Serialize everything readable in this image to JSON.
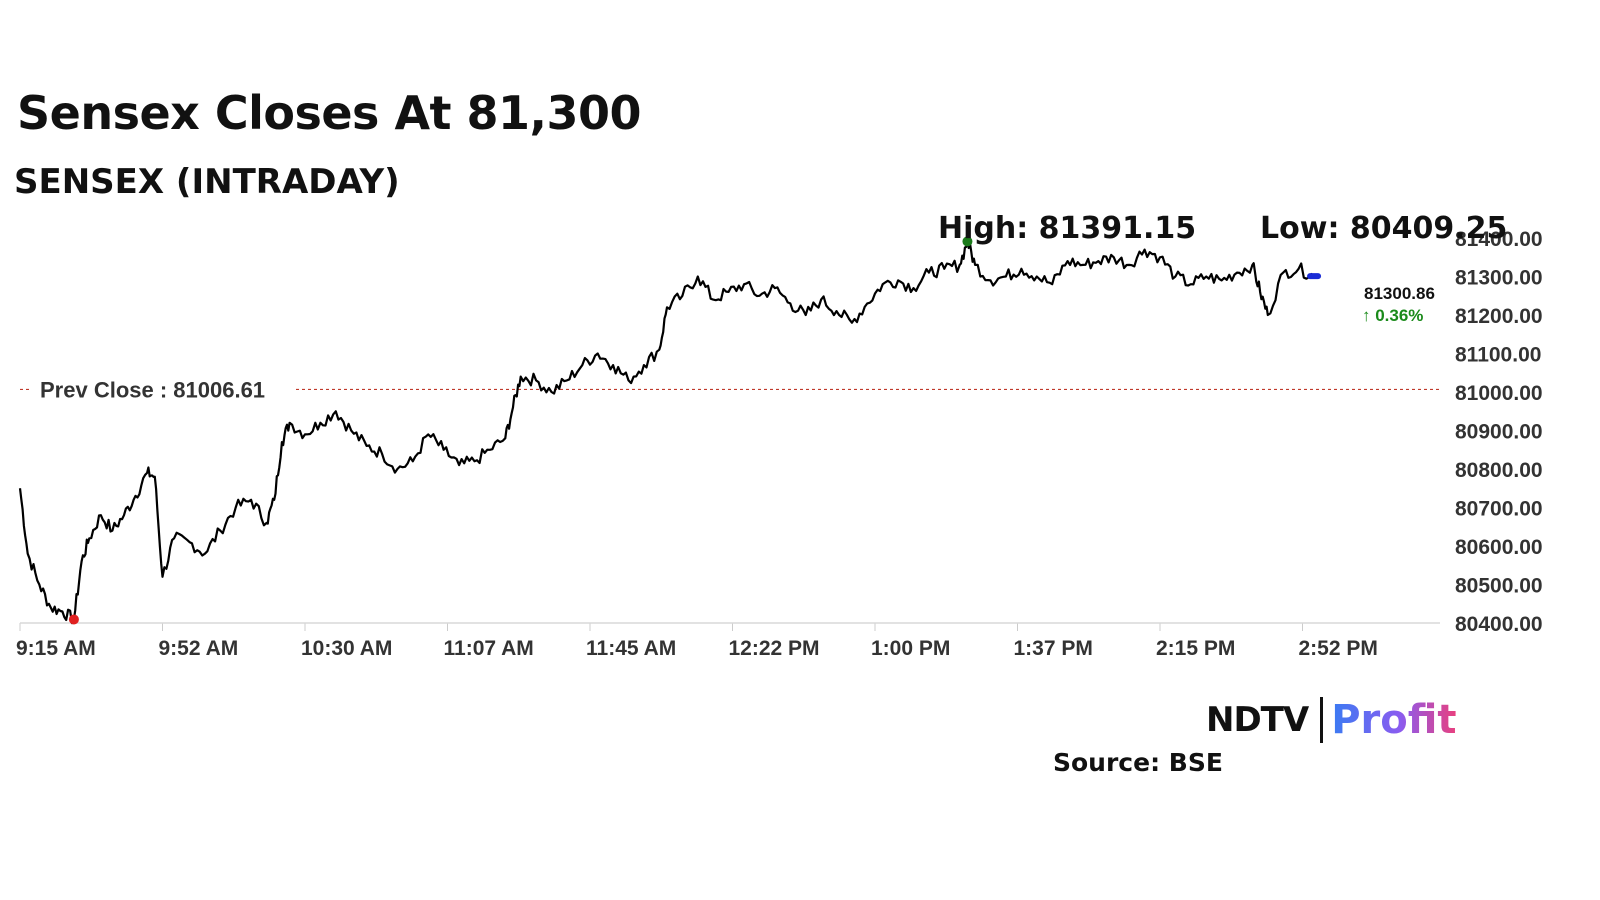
{
  "headline": "Sensex Closes At 81,300",
  "subheadline": "SENSEX (INTRADAY)",
  "high_label": "High: 81391.15",
  "low_label": "Low: 80409.25",
  "prev_close_label": "Prev Close : 81006.61",
  "last_value": "81300.86",
  "change_label": "↑ 0.36%",
  "source_label": "Source: BSE",
  "logo": {
    "brand": "NDTV",
    "product": "Profit"
  },
  "colors": {
    "line": "#000000",
    "prev_close": "#c0392b",
    "high_marker": "#1a7a1a",
    "low_marker": "#e02020",
    "last_marker": "#1a2bd6",
    "change": "#1a8a1a"
  },
  "chart_data": {
    "type": "line",
    "x_ticks": [
      "9:15 AM",
      "9:52 AM",
      "10:30 AM",
      "11:07 AM",
      "11:45 AM",
      "12:22 PM",
      "1:00 PM",
      "1:37 PM",
      "2:15 PM",
      "2:52 PM"
    ],
    "y_ticks": [
      "80400.00",
      "80500.00",
      "80600.00",
      "80700.00",
      "80800.00",
      "80900.00",
      "81000.00",
      "81100.00",
      "81200.00",
      "81300.00",
      "81400.00"
    ],
    "ylim": [
      80400,
      81400
    ],
    "prev_close": 81006.61,
    "high": 81391.15,
    "low": 80409.25,
    "series": [
      {
        "values": [
          [
            0,
            80750
          ],
          [
            2,
            80580
          ],
          [
            5,
            80500
          ],
          [
            8,
            80440
          ],
          [
            11,
            80430
          ],
          [
            14,
            80409.25
          ],
          [
            16,
            80560
          ],
          [
            18,
            80620
          ],
          [
            21,
            80680
          ],
          [
            24,
            80640
          ],
          [
            27,
            80680
          ],
          [
            30,
            80730
          ],
          [
            33,
            80790
          ],
          [
            35,
            80780
          ],
          [
            37,
            80520
          ],
          [
            40,
            80620
          ],
          [
            44,
            80610
          ],
          [
            48,
            80580
          ],
          [
            52,
            80640
          ],
          [
            56,
            80700
          ],
          [
            60,
            80720
          ],
          [
            64,
            80660
          ],
          [
            66,
            80720
          ],
          [
            68,
            80870
          ],
          [
            70,
            80920
          ],
          [
            74,
            80890
          ],
          [
            78,
            80920
          ],
          [
            82,
            80950
          ],
          [
            86,
            80900
          ],
          [
            90,
            80860
          ],
          [
            94,
            80840
          ],
          [
            98,
            80800
          ],
          [
            102,
            80820
          ],
          [
            106,
            80890
          ],
          [
            110,
            80850
          ],
          [
            114,
            80810
          ],
          [
            118,
            80820
          ],
          [
            122,
            80850
          ],
          [
            126,
            80880
          ],
          [
            128,
            80960
          ],
          [
            130,
            81040
          ],
          [
            134,
            81030
          ],
          [
            138,
            81000
          ],
          [
            142,
            81030
          ],
          [
            146,
            81070
          ],
          [
            150,
            81100
          ],
          [
            154,
            81070
          ],
          [
            158,
            81030
          ],
          [
            162,
            81070
          ],
          [
            166,
            81110
          ],
          [
            168,
            81220
          ],
          [
            172,
            81250
          ],
          [
            176,
            81300
          ],
          [
            180,
            81240
          ],
          [
            184,
            81260
          ],
          [
            188,
            81280
          ],
          [
            192,
            81250
          ],
          [
            196,
            81270
          ],
          [
            200,
            81230
          ],
          [
            204,
            81200
          ],
          [
            208,
            81240
          ],
          [
            212,
            81210
          ],
          [
            216,
            81180
          ],
          [
            220,
            81230
          ],
          [
            224,
            81280
          ],
          [
            228,
            81290
          ],
          [
            232,
            81270
          ],
          [
            236,
            81310
          ],
          [
            240,
            81320
          ],
          [
            244,
            81330
          ],
          [
            246,
            81391.15
          ],
          [
            248,
            81330
          ],
          [
            252,
            81290
          ],
          [
            256,
            81300
          ],
          [
            260,
            81320
          ],
          [
            264,
            81300
          ],
          [
            268,
            81280
          ],
          [
            272,
            81340
          ],
          [
            276,
            81330
          ],
          [
            280,
            81340
          ],
          [
            284,
            81350
          ],
          [
            288,
            81330
          ],
          [
            292,
            81370
          ],
          [
            296,
            81350
          ],
          [
            300,
            81300
          ],
          [
            304,
            81280
          ],
          [
            308,
            81300
          ],
          [
            312,
            81290
          ],
          [
            316,
            81310
          ],
          [
            320,
            81330
          ],
          [
            322,
            81260
          ],
          [
            324,
            81200
          ],
          [
            328,
            81310
          ],
          [
            332,
            81320
          ],
          [
            336,
            81300.86
          ]
        ]
      }
    ],
    "x_unit": "minutes after 9:15 AM"
  }
}
